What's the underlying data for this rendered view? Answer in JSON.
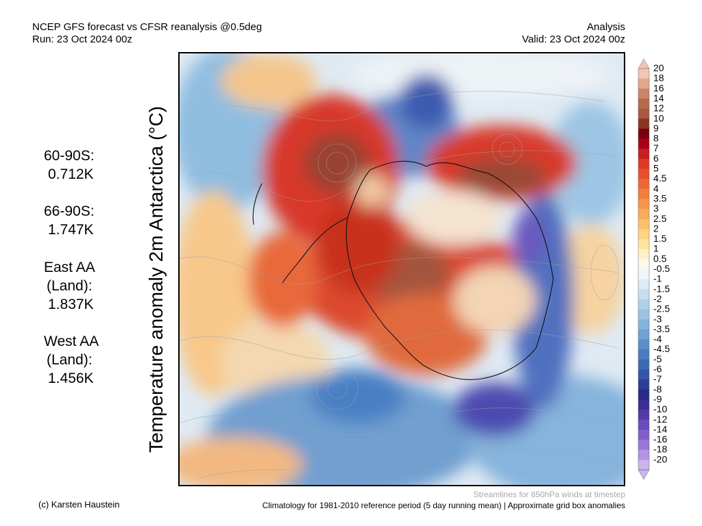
{
  "header": {
    "left_line1": "NCEP GFS forecast vs CFSR reanalysis @0.5deg",
    "left_line2": "Run: 23 Oct 2024 00z",
    "right_line1": "Analysis",
    "right_line2": "Valid: 23 Oct 2024 00z"
  },
  "y_axis_label": "Temperature anomaly 2m Antarctica (°C)",
  "stats": [
    {
      "label_lines": [
        "60-90S:"
      ],
      "value": "0.712K"
    },
    {
      "label_lines": [
        "66-90S:"
      ],
      "value": "1.747K"
    },
    {
      "label_lines": [
        "East AA",
        "(Land):"
      ],
      "value": "1.837K"
    },
    {
      "label_lines": [
        "West AA",
        "(Land):"
      ],
      "value": "1.456K"
    }
  ],
  "colorbar": {
    "labels": [
      "20",
      "18",
      "16",
      "14",
      "12",
      "10",
      "9",
      "8",
      "7",
      "6",
      "5",
      "4.5",
      "4",
      "3.5",
      "3",
      "2.5",
      "2",
      "1.5",
      "1",
      "0.5",
      "-0.5",
      "-1",
      "-1.5",
      "-2",
      "-2.5",
      "-3",
      "-3.5",
      "-4",
      "-4.5",
      "-5",
      "-6",
      "-7",
      "-8",
      "-9",
      "-10",
      "-12",
      "-14",
      "-16",
      "-18",
      "-20"
    ],
    "colors": [
      "#f2c6b4",
      "#e3a78c",
      "#c98667",
      "#b86a4e",
      "#a85a40",
      "#8a3520",
      "#7a0010",
      "#a80016",
      "#c81e1e",
      "#dc3a26",
      "#e85030",
      "#ee6836",
      "#f27e40",
      "#f5954e",
      "#f8ab5c",
      "#fbc06e",
      "#fdd384",
      "#fee3a0",
      "#fff0c8",
      "#fbf8ec",
      "#eef6fb",
      "#dcebf5",
      "#c6deee",
      "#b0d0e8",
      "#9cc2e2",
      "#86b3da",
      "#70a2d2",
      "#5a8fc8",
      "#4a7dbe",
      "#3e6ab2",
      "#3456a6",
      "#2c3f96",
      "#2a2a86",
      "#3c2d92",
      "#543aa8",
      "#6a4cba",
      "#8060c8",
      "#9878d6",
      "#b294e2",
      "#cab4ec"
    ]
  },
  "footer": {
    "credit": "(c) Karsten Haustein",
    "streamlines_note": "Streamlines for 850hPa winds at timestep",
    "climatology_note": "Climatology for 1981-2010 reference period (5 day running mean) | Approximate grid box anomalies"
  }
}
